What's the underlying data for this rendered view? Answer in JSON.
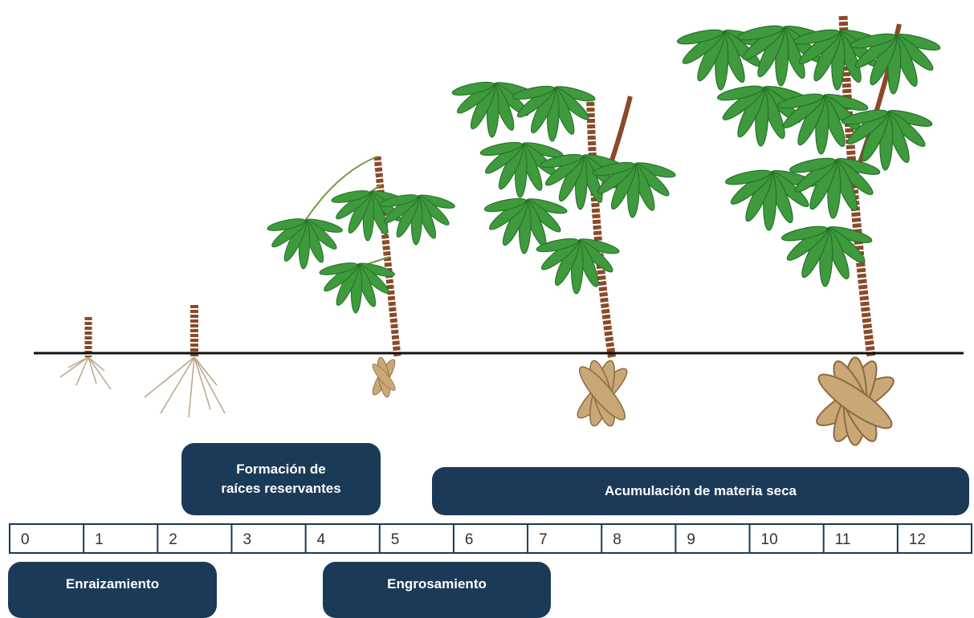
{
  "phases": [
    {
      "label": "Formación de raíces reservantes"
    },
    {
      "label": "Acumulación de materia seca"
    },
    {
      "label": "Enraizamiento"
    },
    {
      "label": "Engrosamiento"
    }
  ],
  "timeline": [
    0,
    1,
    2,
    3,
    4,
    5,
    6,
    7,
    8,
    9,
    10,
    11,
    12
  ]
}
